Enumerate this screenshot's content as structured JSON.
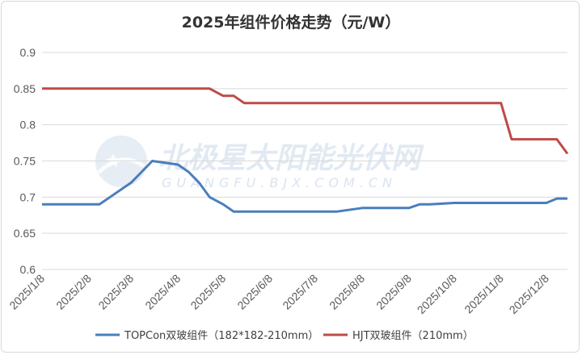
{
  "chart_data": {
    "type": "line",
    "title": "2025年组件价格走势（元/W）",
    "xlabel": "",
    "ylabel": "",
    "ylim": [
      0.6,
      0.9
    ],
    "yticks": [
      "0.6",
      "0.65",
      "0.7",
      "0.75",
      "0.8",
      "0.85",
      "0.9"
    ],
    "x_tick_labels": [
      "2025/1/8",
      "2025/2/8",
      "2025/3/8",
      "2025/4/8",
      "2025/5/8",
      "2025/6/8",
      "2025/7/8",
      "2025/8/8",
      "2025/9/8",
      "2025/10/8",
      "2025/11/8",
      "2025/12/8"
    ],
    "grid": "horizontal",
    "legend_position": "bottom",
    "x": [
      "2025/1/8",
      "2025/1/15",
      "2025/1/22",
      "2025/2/8",
      "2025/2/15",
      "2025/2/22",
      "2025/3/8",
      "2025/3/15",
      "2025/3/22",
      "2025/4/8",
      "2025/4/15",
      "2025/4/22",
      "2025/4/29",
      "2025/5/8",
      "2025/5/15",
      "2025/5/22",
      "2025/6/8",
      "2025/6/15",
      "2025/6/22",
      "2025/7/8",
      "2025/7/15",
      "2025/7/22",
      "2025/8/8",
      "2025/8/15",
      "2025/8/22",
      "2025/9/8",
      "2025/9/15",
      "2025/9/22",
      "2025/10/8",
      "2025/10/15",
      "2025/10/22",
      "2025/11/8",
      "2025/11/15",
      "2025/11/22",
      "2025/12/8",
      "2025/12/15",
      "2025/12/22"
    ],
    "series": [
      {
        "name": "TOPCon双玻组件（182*182-210mm）",
        "color": "#4a7ebb",
        "values": [
          0.69,
          0.69,
          0.69,
          0.69,
          0.69,
          0.7,
          0.72,
          0.735,
          0.75,
          0.745,
          0.735,
          0.72,
          0.7,
          0.69,
          0.68,
          0.68,
          0.68,
          0.68,
          0.68,
          0.68,
          0.68,
          0.68,
          0.685,
          0.685,
          0.685,
          0.685,
          0.69,
          0.69,
          0.692,
          0.692,
          0.692,
          0.692,
          0.692,
          0.692,
          0.692,
          0.698,
          0.698
        ]
      },
      {
        "name": "HJT双玻组件（210mm）",
        "color": "#be4b48",
        "values": [
          0.85,
          0.85,
          0.85,
          0.85,
          0.85,
          0.85,
          0.85,
          0.85,
          0.85,
          0.85,
          0.85,
          0.85,
          0.85,
          0.84,
          0.84,
          0.83,
          0.83,
          0.83,
          0.83,
          0.83,
          0.83,
          0.83,
          0.83,
          0.83,
          0.83,
          0.83,
          0.83,
          0.83,
          0.83,
          0.83,
          0.83,
          0.83,
          0.78,
          0.78,
          0.78,
          0.78,
          0.76
        ]
      }
    ]
  },
  "watermark": {
    "name": "北极星太阳能光伏网",
    "url": "GUANGFU.BJX.COM.CN"
  }
}
